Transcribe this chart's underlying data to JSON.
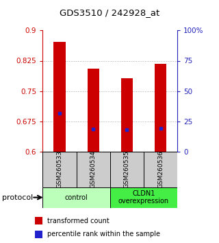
{
  "title": "GDS3510 / 242928_at",
  "samples": [
    "GSM260533",
    "GSM260534",
    "GSM260535",
    "GSM260536"
  ],
  "bar_values": [
    0.872,
    0.805,
    0.782,
    0.818
  ],
  "bar_bottom": 0.6,
  "percentile_values": [
    0.696,
    0.657,
    0.655,
    0.658
  ],
  "bar_color": "#cc0000",
  "percentile_color": "#2222cc",
  "ylim": [
    0.6,
    0.9
  ],
  "yticks_left": [
    0.6,
    0.675,
    0.75,
    0.825,
    0.9
  ],
  "yticks_right": [
    0,
    25,
    50,
    75,
    100
  ],
  "ytick_labels_left": [
    "0.6",
    "0.675",
    "0.75",
    "0.825",
    "0.9"
  ],
  "ytick_labels_right": [
    "0",
    "25",
    "50",
    "75",
    "100%"
  ],
  "left_axis_color": "#cc0000",
  "right_axis_color": "#2222bb",
  "groups": [
    {
      "label": "control",
      "samples": [
        0,
        1
      ],
      "color": "#bbffbb"
    },
    {
      "label": "CLDN1\noverexpression",
      "samples": [
        2,
        3
      ],
      "color": "#44ee44"
    }
  ],
  "protocol_label": "protocol",
  "bar_width": 0.35,
  "grid_color": "#aaaaaa",
  "bg_color": "#ffffff",
  "sample_box_color": "#cccccc"
}
